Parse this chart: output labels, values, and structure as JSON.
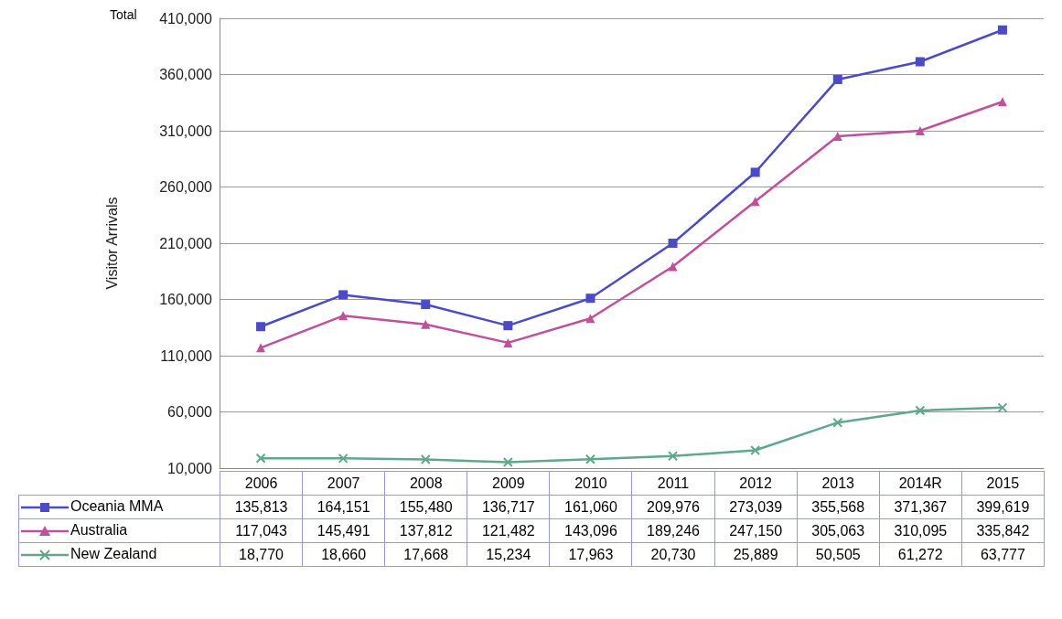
{
  "chart_data": {
    "type": "line",
    "ylabel": "Visitor Arrivals",
    "annotations": [
      "Total"
    ],
    "categories": [
      "2006",
      "2007",
      "2008",
      "2009",
      "2010",
      "2011",
      "2012",
      "2013",
      "2014R",
      "2015"
    ],
    "series": [
      {
        "name": "Oceania MMA",
        "color": "#4b4bc8",
        "marker": "square",
        "values": [
          135813,
          164151,
          155480,
          136717,
          161060,
          209976,
          273039,
          355568,
          371367,
          399619
        ],
        "value_labels": [
          "135,813",
          "164,151",
          "155,480",
          "136,717",
          "161,060",
          "209,976",
          "273,039",
          "355,568",
          "371,367",
          "399,619"
        ]
      },
      {
        "name": "Australia",
        "color": "#c0509b",
        "marker": "triangle",
        "values": [
          117043,
          145491,
          137812,
          121482,
          143096,
          189246,
          247150,
          305063,
          310095,
          335842
        ],
        "value_labels": [
          "117,043",
          "145,491",
          "137,812",
          "121,482",
          "143,096",
          "189,246",
          "247,150",
          "305,063",
          "310,095",
          "335,842"
        ]
      },
      {
        "name": "New Zealand",
        "color": "#5fa88a",
        "marker": "cross",
        "values": [
          18770,
          18660,
          17668,
          15234,
          17963,
          20730,
          25889,
          50505,
          61272,
          63777
        ],
        "value_labels": [
          "18,770",
          "18,660",
          "17,668",
          "15,234",
          "17,963",
          "20,730",
          "25,889",
          "50,505",
          "61,272",
          "63,777"
        ]
      }
    ],
    "ylim": [
      10000,
      410000
    ],
    "yticks": [
      {
        "value": 10000,
        "label": "10,000"
      },
      {
        "value": 60000,
        "label": "60,000"
      },
      {
        "value": 110000,
        "label": "110,000"
      },
      {
        "value": 160000,
        "label": "160,000"
      },
      {
        "value": 210000,
        "label": "210,000"
      },
      {
        "value": 260000,
        "label": "260,000"
      },
      {
        "value": 310000,
        "label": "310,000"
      },
      {
        "value": 360000,
        "label": "360,000"
      },
      {
        "value": 410000,
        "label": "410,000"
      }
    ],
    "grid": "y",
    "legend": "bottom"
  }
}
